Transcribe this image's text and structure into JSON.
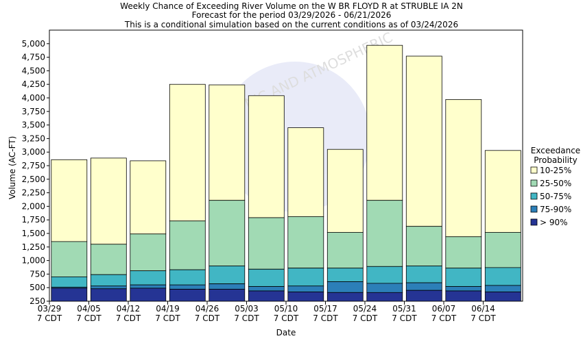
{
  "chart_data": {
    "type": "bar",
    "stacked": true,
    "title_lines": [
      "Weekly Chance of Exceeding River Volume on the W BR FLOYD R at STRUBLE IA 2N",
      "Forecast for the period 03/29/2026 - 06/21/2026",
      "This is a conditional simulation based on the current conditions as of 03/24/2026"
    ],
    "xlabel": "Date",
    "ylabel": "Volume (AC-FT)",
    "ylim": [
      250,
      5250
    ],
    "yticks": [
      250,
      500,
      750,
      1000,
      1250,
      1500,
      1750,
      2000,
      2250,
      2500,
      2750,
      3000,
      3250,
      3500,
      3750,
      4000,
      4250,
      4500,
      4750,
      5000
    ],
    "ytick_labels": [
      "250",
      "500",
      "750",
      "1,000",
      "1,250",
      "1,500",
      "1,750",
      "2,000",
      "2,250",
      "2,500",
      "2,750",
      "3,000",
      "3,250",
      "3,500",
      "3,750",
      "4,000",
      "4,250",
      "4,500",
      "4,750",
      "5,000"
    ],
    "xtick_labels": [
      {
        "date": "03/29",
        "tz": "7 CDT"
      },
      {
        "date": "04/05",
        "tz": "7 CDT"
      },
      {
        "date": "04/12",
        "tz": "7 CDT"
      },
      {
        "date": "04/19",
        "tz": "7 CDT"
      },
      {
        "date": "04/26",
        "tz": "7 CDT"
      },
      {
        "date": "05/03",
        "tz": "7 CDT"
      },
      {
        "date": "05/10",
        "tz": "7 CDT"
      },
      {
        "date": "05/17",
        "tz": "7 CDT"
      },
      {
        "date": "05/24",
        "tz": "7 CDT"
      },
      {
        "date": "05/31",
        "tz": "7 CDT"
      },
      {
        "date": "06/07",
        "tz": "7 CDT"
      },
      {
        "date": "06/14",
        "tz": "7 CDT"
      }
    ],
    "legend": {
      "title_lines": [
        "Exceedance",
        "Probability"
      ],
      "placement": "right"
    },
    "series": [
      {
        "name": "10-25%",
        "color": "#ffffcc",
        "tops": [
          2860,
          2890,
          2840,
          4250,
          4240,
          4040,
          3450,
          3050,
          4970,
          4770,
          3970,
          3030
        ]
      },
      {
        "name": "25-50%",
        "color": "#a1dab4",
        "tops": [
          1350,
          1300,
          1490,
          1730,
          2110,
          1790,
          1810,
          1520,
          2110,
          1630,
          1440,
          1520
        ]
      },
      {
        "name": "50-75%",
        "color": "#41b6c4",
        "tops": [
          700,
          740,
          810,
          830,
          900,
          840,
          860,
          860,
          890,
          900,
          860,
          870
        ]
      },
      {
        "name": "75-90%",
        "color": "#2c7fb8",
        "tops": [
          510,
          530,
          550,
          550,
          570,
          520,
          530,
          610,
          580,
          590,
          520,
          540
        ]
      },
      {
        "name": "> 90%",
        "color": "#253494",
        "tops": [
          490,
          480,
          490,
          470,
          470,
          440,
          420,
          410,
          410,
          450,
          440,
          420
        ]
      }
    ]
  }
}
